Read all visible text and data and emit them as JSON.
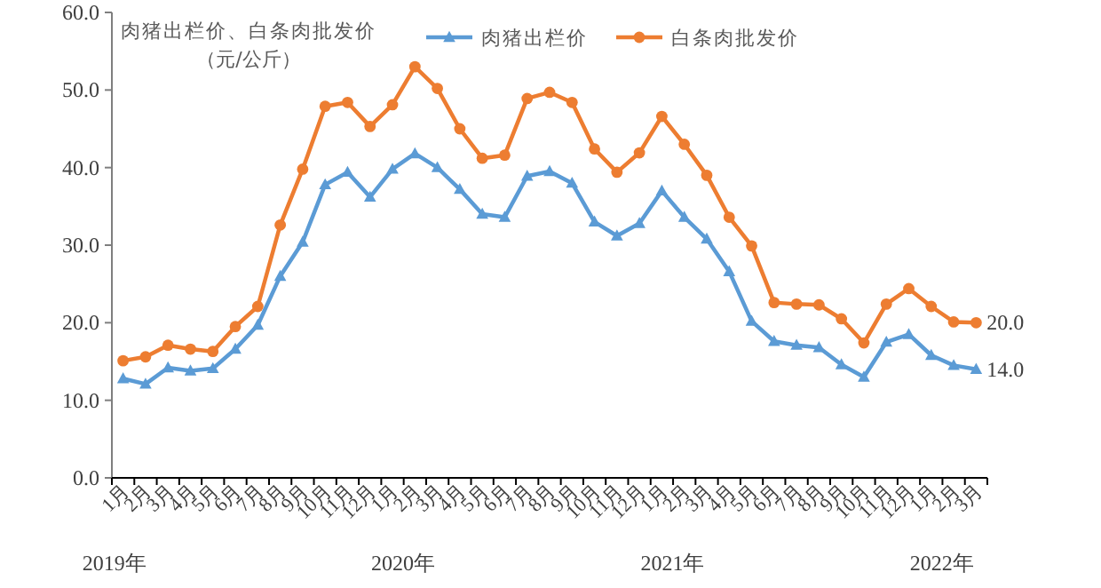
{
  "chart_data": {
    "type": "line",
    "title": "肉猪出栏价、白条肉批发价",
    "subtitle": "（元/公斤）",
    "categories": [
      "1月",
      "2月",
      "3月",
      "4月",
      "5月",
      "6月",
      "7月",
      "8月",
      "9月",
      "10月",
      "11月",
      "12月",
      "1月",
      "2月",
      "3月",
      "4月",
      "5月",
      "6月",
      "7月",
      "8月",
      "9月",
      "10月",
      "11月",
      "12月",
      "1月",
      "2月",
      "3月",
      "4月",
      "5月",
      "6月",
      "7月",
      "8月",
      "9月",
      "10月",
      "11月",
      "12月",
      "1月",
      "2月",
      "3月"
    ],
    "series": [
      {
        "name": "肉猪出栏价",
        "color": "#5b9bd5",
        "marker": "triangle",
        "values": [
          12.8,
          12.1,
          14.2,
          13.8,
          14.1,
          16.6,
          19.7,
          26.0,
          30.4,
          37.8,
          39.4,
          36.2,
          39.8,
          41.8,
          40.0,
          37.2,
          34.0,
          33.6,
          38.9,
          39.5,
          38.0,
          33.0,
          31.2,
          32.8,
          37.0,
          33.6,
          30.8,
          26.6,
          20.2,
          17.6,
          17.1,
          16.8,
          14.6,
          13.0,
          17.5,
          18.5,
          15.8,
          14.5,
          14.0
        ],
        "value_labels": [
          null,
          null,
          null,
          null,
          null,
          null,
          null,
          null,
          null,
          null,
          null,
          null,
          null,
          null,
          null,
          null,
          null,
          null,
          null,
          null,
          null,
          null,
          null,
          null,
          null,
          null,
          null,
          null,
          null,
          null,
          null,
          null,
          null,
          null,
          null,
          null,
          null,
          null,
          "14.0"
        ]
      },
      {
        "name": "白条肉批发价",
        "color": "#ed7d31",
        "marker": "circle",
        "values": [
          15.1,
          15.6,
          17.1,
          16.6,
          16.3,
          19.5,
          22.1,
          32.6,
          39.8,
          47.9,
          48.4,
          45.3,
          48.1,
          53.0,
          50.2,
          45.0,
          41.2,
          41.6,
          48.9,
          49.7,
          48.4,
          42.4,
          39.4,
          41.9,
          46.6,
          43.0,
          39.0,
          33.6,
          29.9,
          22.6,
          22.4,
          22.3,
          20.5,
          17.4,
          22.4,
          24.4,
          22.1,
          20.1,
          20.0
        ],
        "value_labels": [
          null,
          null,
          null,
          null,
          null,
          null,
          null,
          null,
          null,
          null,
          null,
          null,
          null,
          null,
          null,
          null,
          null,
          null,
          null,
          null,
          null,
          null,
          null,
          null,
          null,
          null,
          null,
          null,
          null,
          null,
          null,
          null,
          null,
          null,
          null,
          null,
          null,
          null,
          "20.0"
        ]
      }
    ],
    "ylim": [
      0,
      60
    ],
    "yticks": [
      {
        "value": 0,
        "label": "0.0"
      },
      {
        "value": 10,
        "label": "10.0"
      },
      {
        "value": 20,
        "label": "20.0"
      },
      {
        "value": 30,
        "label": "30.0"
      },
      {
        "value": 40,
        "label": "40.0"
      },
      {
        "value": 50,
        "label": "50.0"
      },
      {
        "value": 60,
        "label": "60.0"
      }
    ],
    "annotations": [
      "2019年",
      "2020年",
      "2021年",
      "2022年"
    ],
    "legend": "top",
    "line_style": "solid"
  }
}
